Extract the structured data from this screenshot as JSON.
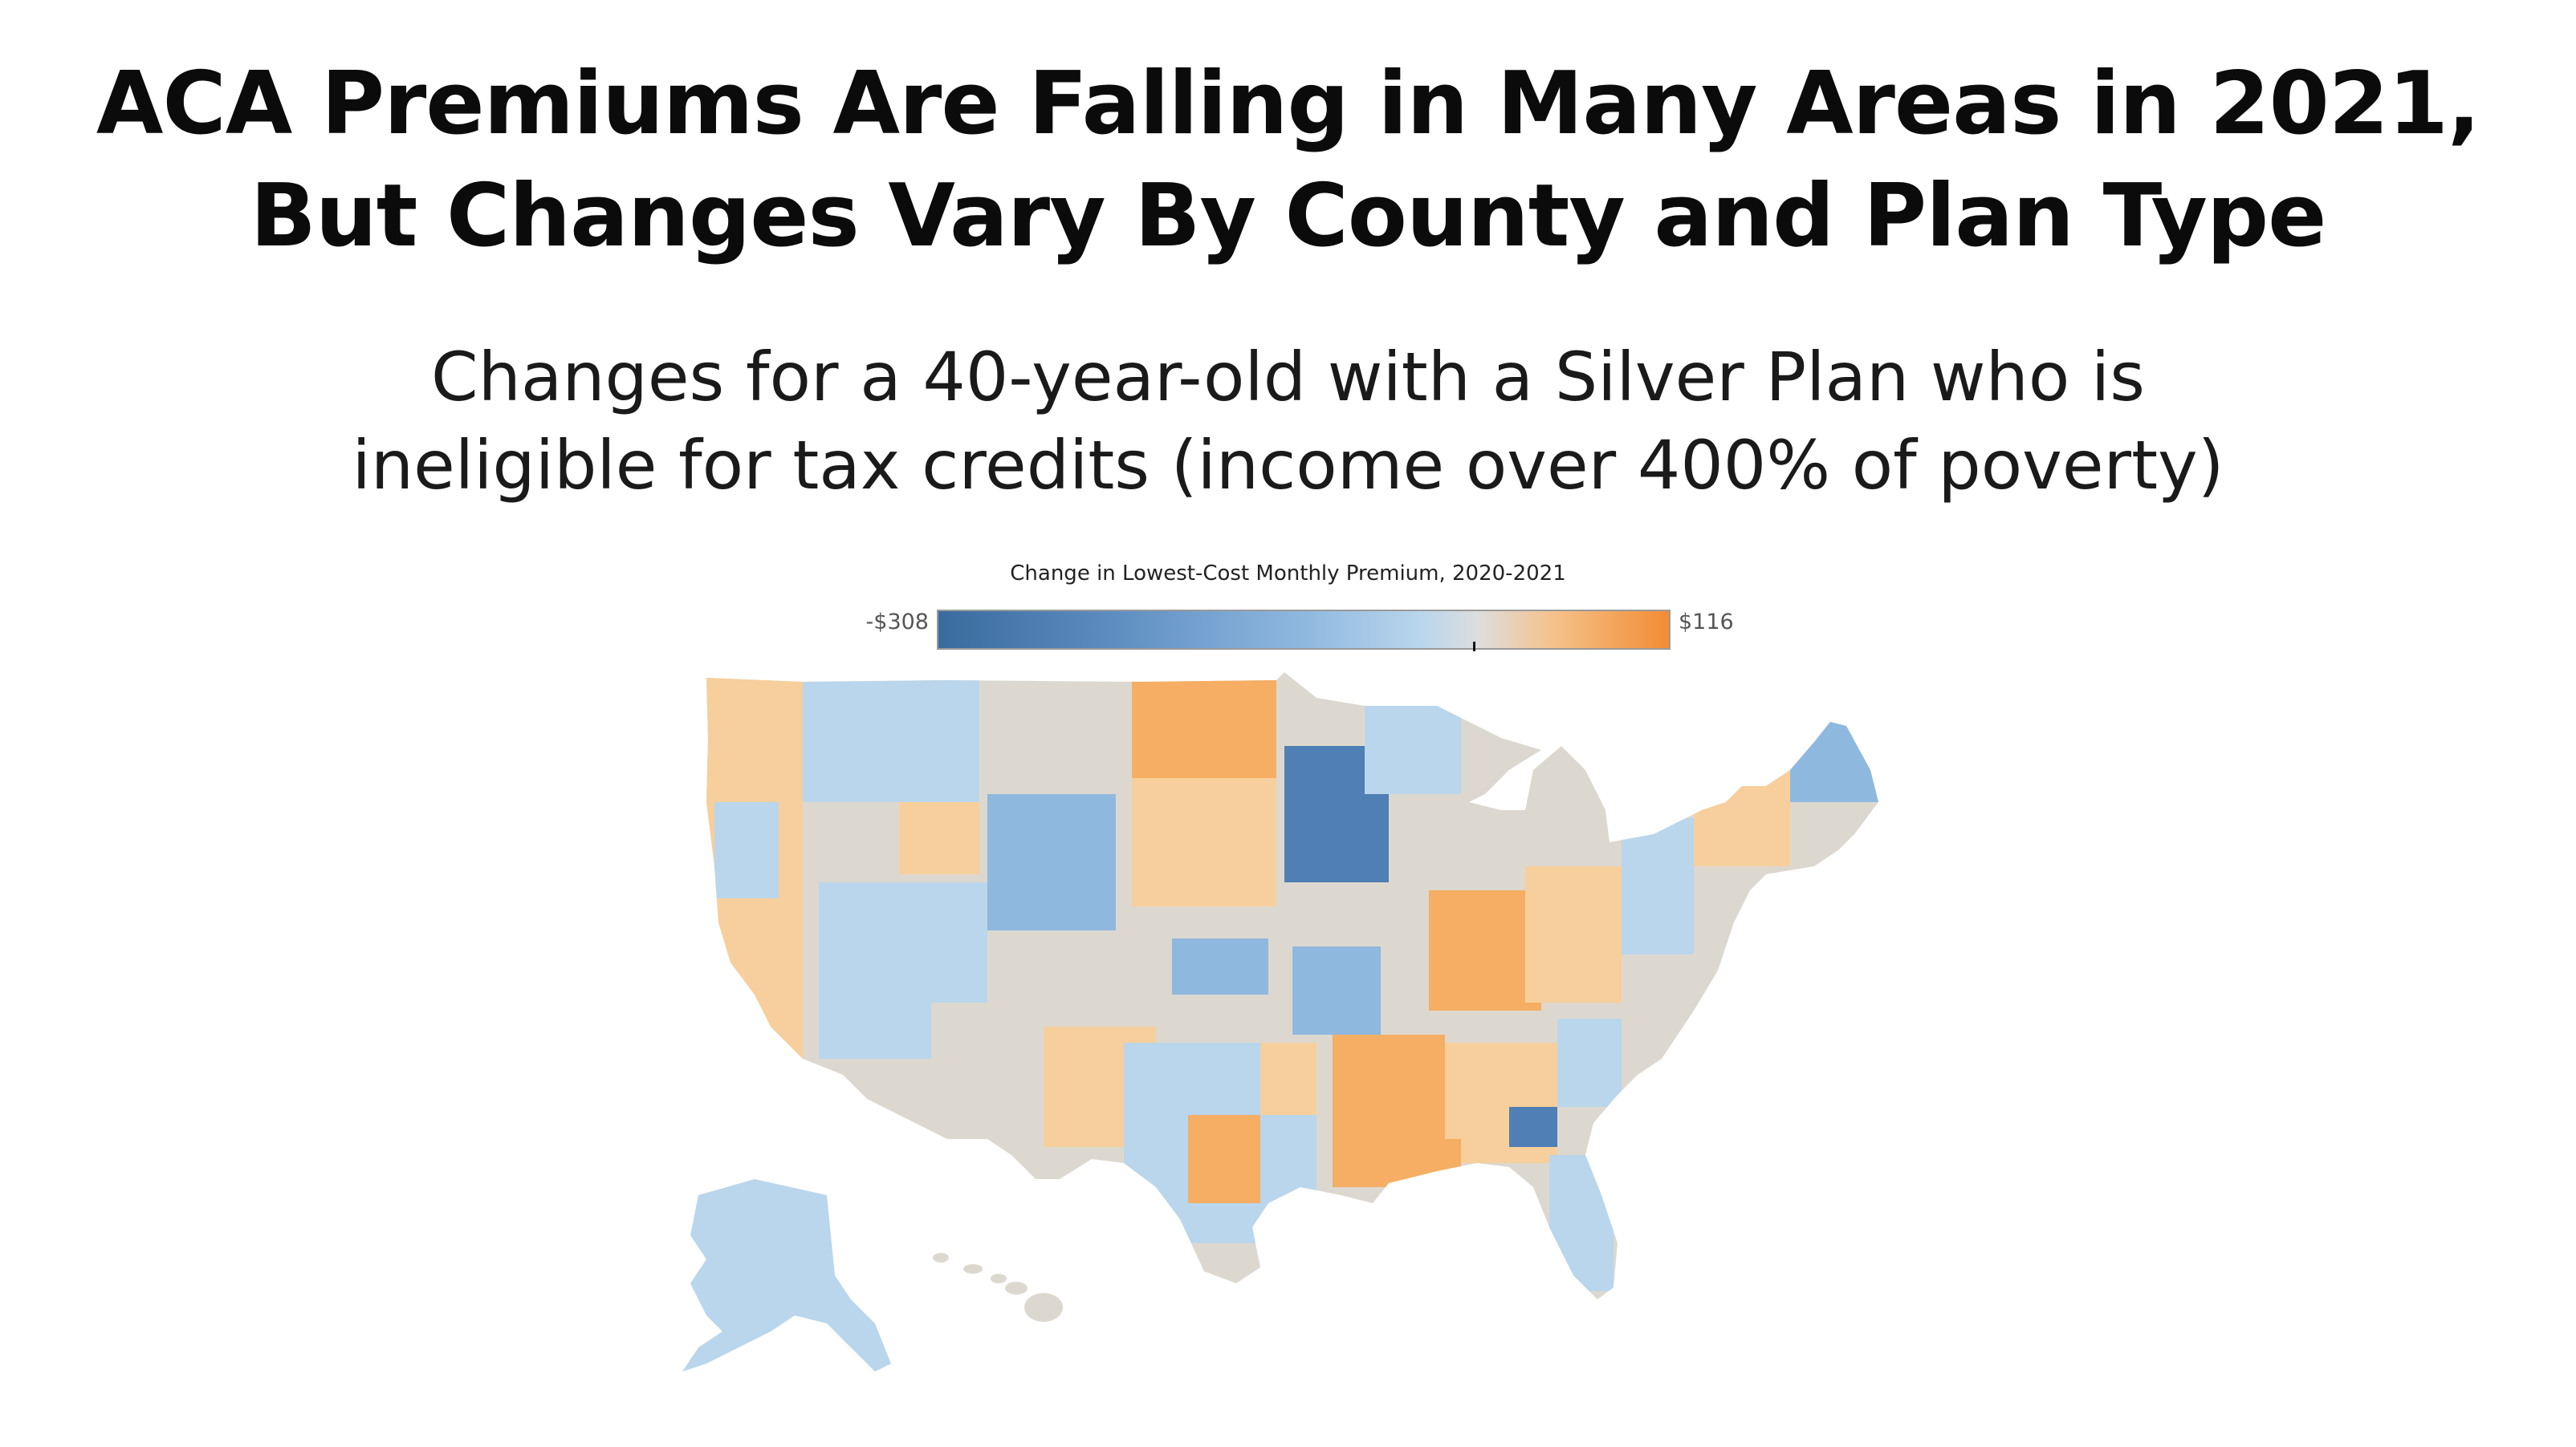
{
  "title": {
    "line1": "ACA Premiums Are Falling in Many Areas in 2021,",
    "line2": "But Changes Vary By County and Plan Type"
  },
  "subtitle": {
    "line1": "Changes for a 40-year-old with a Silver Plan who is",
    "line2": "ineligible for tax credits (income over 400% of poverty)"
  },
  "legend": {
    "title": "Change in Lowest-Cost Monthly Premium, 2020-2021",
    "min_label": "-$308",
    "max_label": "$116",
    "colors": {
      "min": "#3a6b9e",
      "mid_blue": "#8fb8df",
      "neutral": "#dddddd",
      "mid_orange": "#f5c28c",
      "max": "#f28c34"
    }
  },
  "map": {
    "regions": [
      "contiguous-us",
      "alaska",
      "hawaii"
    ],
    "fill_colors": {
      "neutral": "#ddd8cf",
      "light_blue": "#b9d6ec",
      "blue": "#8fb8df",
      "dark_blue": "#4f7fb5",
      "light_orange": "#f7cf9c",
      "orange": "#f5ae63"
    }
  }
}
